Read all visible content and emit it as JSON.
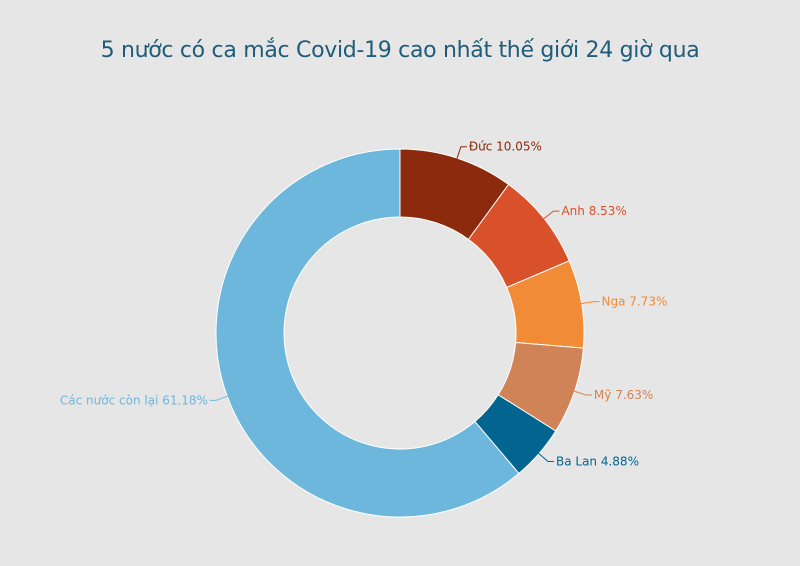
{
  "chart_data": {
    "type": "pie",
    "variant": "donut",
    "title": "5 nước có ca mắc Covid-19 cao nhất thế giới 24 giờ qua",
    "slices": [
      {
        "name": "Đức",
        "value": 10.05,
        "label": "Đức 10.05%",
        "color": "#8b2a0c"
      },
      {
        "name": "Anh",
        "value": 8.53,
        "label": "Anh 8.53%",
        "color": "#d9512a"
      },
      {
        "name": "Nga",
        "value": 7.73,
        "label": "Nga 7.73%",
        "color": "#f18b35"
      },
      {
        "name": "Mỹ",
        "value": 7.63,
        "label": "Mỹ 7.63%",
        "color": "#d08356"
      },
      {
        "name": "Ba Lan",
        "value": 4.88,
        "label": "Ba Lan 4.88%",
        "color": "#016590"
      },
      {
        "name": "Các nước còn lại",
        "value": 61.18,
        "label": "Các nước còn lại 61.18%",
        "color": "#6db6dc"
      }
    ],
    "background": "#e6e6e6",
    "title_color": "#1f5c7a"
  }
}
